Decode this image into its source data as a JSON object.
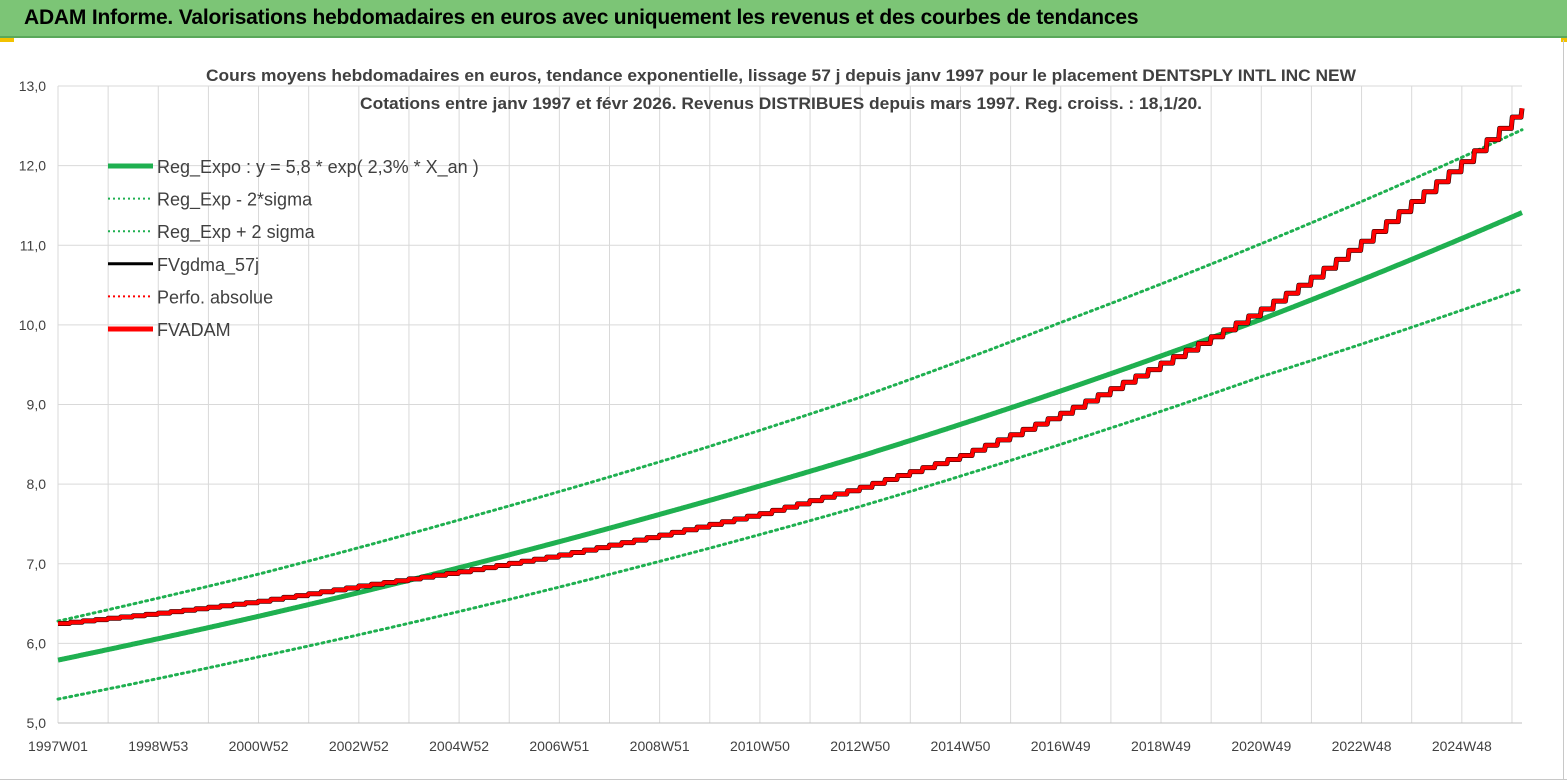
{
  "banner": {
    "title": "ADAM Informe. Valorisations hebdomadaires en euros avec uniquement les revenus et des courbes de tendances"
  },
  "colors": {
    "banner_bg": "#7cc576",
    "reg_expo": "#1fb050",
    "fvadam": "#ff0000",
    "fvgdma": "#000000",
    "grid": "#d9d9d9",
    "title_text": "#404040"
  },
  "chart_data": {
    "type": "line",
    "title": "Cours moyens hebdomadaires en euros, tendance exponentielle, lissage 57 j depuis janv 1997 pour le placement DENTSPLY INTL INC NEW",
    "subtitle": "Cotations entre janv 1997 et févr 2026. Revenus DISTRIBUES depuis mars 1997. Reg. croiss. : 18,1/20.",
    "xlabel": "",
    "ylabel": "",
    "ylim": [
      5.0,
      13.0
    ],
    "yticks": [
      "5,0",
      "6,0",
      "7,0",
      "8,0",
      "9,0",
      "10,0",
      "11,0",
      "12,0",
      "13,0"
    ],
    "xlim": [
      1997.0,
      2026.2
    ],
    "xticks": [
      {
        "label": "1997W01",
        "x": 1997.0
      },
      {
        "label": "1998W53",
        "x": 1999.0
      },
      {
        "label": "2000W52",
        "x": 2001.0
      },
      {
        "label": "2002W52",
        "x": 2003.0
      },
      {
        "label": "2004W52",
        "x": 2005.0
      },
      {
        "label": "2006W51",
        "x": 2007.0
      },
      {
        "label": "2008W51",
        "x": 2009.0
      },
      {
        "label": "2010W50",
        "x": 2011.0
      },
      {
        "label": "2012W50",
        "x": 2013.0
      },
      {
        "label": "2014W50",
        "x": 2015.0
      },
      {
        "label": "2016W49",
        "x": 2017.0
      },
      {
        "label": "2018W49",
        "x": 2019.0
      },
      {
        "label": "2020W49",
        "x": 2021.0
      },
      {
        "label": "2022W48",
        "x": 2023.0
      },
      {
        "label": "2024W48",
        "x": 2025.0
      }
    ],
    "grid": true,
    "legend_position": "top-left",
    "series": [
      {
        "name": "Reg_Expo : y = 5,8 * exp( 2,3% *  X_an )",
        "style": "solid-thick",
        "color": "#1fb050",
        "x": [
          1997,
          2001,
          2005,
          2009,
          2013,
          2017,
          2021,
          2026.2
        ],
        "values": [
          5.79,
          6.34,
          6.95,
          7.62,
          8.35,
          9.17,
          10.07,
          11.41
        ]
      },
      {
        "name": "Reg_Exp - 2*sigma",
        "style": "dotted",
        "color": "#1fb050",
        "x": [
          1997,
          2001,
          2005,
          2009,
          2013,
          2017,
          2021,
          2026.2
        ],
        "values": [
          5.3,
          5.83,
          6.4,
          7.03,
          7.72,
          8.5,
          9.35,
          10.45
        ]
      },
      {
        "name": "Reg_Exp + 2 sigma",
        "style": "dotted",
        "color": "#1fb050",
        "x": [
          1997,
          2001,
          2005,
          2009,
          2013,
          2017,
          2021,
          2026.2
        ],
        "values": [
          6.28,
          6.87,
          7.55,
          8.28,
          9.09,
          10.03,
          11.02,
          12.45
        ]
      },
      {
        "name": "FVgdma_57j",
        "style": "solid",
        "color": "#000000",
        "x": [
          1997,
          1999,
          2001,
          2003,
          2005,
          2007,
          2009,
          2011,
          2013,
          2015,
          2017,
          2019,
          2020,
          2021,
          2022,
          2023,
          2024,
          2025,
          2026.2
        ],
        "values": [
          6.25,
          6.38,
          6.53,
          6.72,
          6.9,
          7.11,
          7.36,
          7.63,
          7.96,
          8.36,
          8.89,
          9.52,
          9.85,
          10.2,
          10.6,
          11.05,
          11.55,
          12.05,
          12.72
        ]
      },
      {
        "name": "Perfo. absolue",
        "style": "dotted",
        "color": "#ff0000",
        "x": [],
        "values": []
      },
      {
        "name": "FVADAM",
        "style": "solid-thick",
        "color": "#ff0000",
        "x": [
          1997,
          1999,
          2001,
          2003,
          2005,
          2007,
          2009,
          2011,
          2013,
          2015,
          2017,
          2019,
          2020,
          2021,
          2022,
          2023,
          2024,
          2025,
          2026.2
        ],
        "values": [
          6.25,
          6.38,
          6.53,
          6.72,
          6.9,
          7.11,
          7.36,
          7.63,
          7.96,
          8.36,
          8.89,
          9.52,
          9.85,
          10.2,
          10.6,
          11.05,
          11.55,
          12.05,
          12.72
        ]
      }
    ]
  }
}
